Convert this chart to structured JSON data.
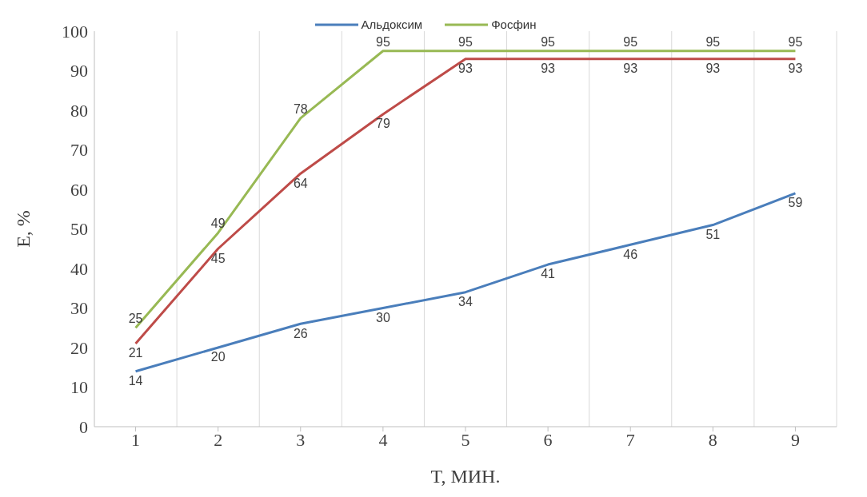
{
  "chart_data": {
    "type": "line",
    "xlabel": "T, МИН.",
    "ylabel": "E, %",
    "categories": [
      "1",
      "2",
      "3",
      "4",
      "5",
      "6",
      "7",
      "8",
      "9"
    ],
    "series": [
      {
        "name": "Альдоксим",
        "color": "#4a7ebb",
        "values": [
          14,
          20,
          26,
          30,
          34,
          41,
          46,
          51,
          59
        ]
      },
      {
        "color": "#be4b48",
        "values": [
          21,
          45,
          64,
          79,
          93,
          93,
          93,
          93,
          93
        ]
      },
      {
        "name": "Фосфин",
        "color": "#98b954",
        "values": [
          25,
          49,
          78,
          95,
          95,
          95,
          95,
          95,
          95
        ]
      }
    ],
    "ylim": [
      0,
      100
    ],
    "yticks": [
      0,
      10,
      20,
      30,
      40,
      50,
      60,
      70,
      80,
      90,
      100
    ],
    "grid": "x",
    "legend": "top",
    "data_labels": true
  }
}
